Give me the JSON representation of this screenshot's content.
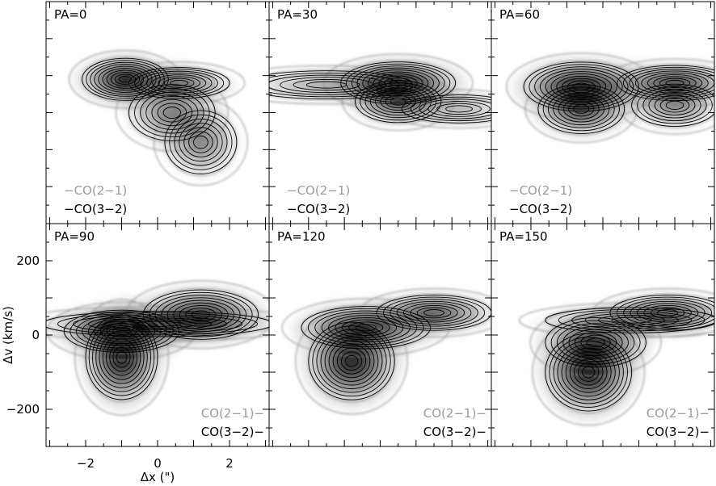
{
  "chart_data": {
    "type": "heatmap",
    "xlabel": "Δx (\")",
    "ylabel": "Δv (km/s)",
    "xlim": [
      -3.1,
      3.1
    ],
    "ylim": [
      -300,
      300
    ],
    "x_ticks": [
      -2,
      0,
      2
    ],
    "y_ticks": [
      -200,
      0,
      200
    ],
    "x_tick_labels": [
      "−2",
      "0",
      "2"
    ],
    "y_tick_labels": [
      "−200",
      "0",
      "200"
    ],
    "grid": false,
    "layout": "2 rows x 3 columns",
    "legend_series": [
      {
        "name": "CO(2−1)",
        "color": "#9a9a9a",
        "style": "gray contours"
      },
      {
        "name": "CO(3−2)",
        "color": "#000000",
        "style": "black contours"
      }
    ],
    "panels": [
      {
        "label": "PA=0",
        "legend": [
          "−CO(2−1)",
          "−CO(3−2)"
        ],
        "legend_position": "bottom-left",
        "components": [
          {
            "x": -0.9,
            "v": 90,
            "sx": 0.6,
            "sv": 30,
            "peak": 1.0
          },
          {
            "x": 0.6,
            "v": 80,
            "sx": 0.7,
            "sv": 22,
            "peak": 0.6
          },
          {
            "x": 0.4,
            "v": 0,
            "sx": 0.6,
            "sv": 40,
            "peak": 0.55
          },
          {
            "x": 1.2,
            "v": -80,
            "sx": 0.5,
            "sv": 45,
            "peak": 0.5
          }
        ]
      },
      {
        "label": "PA=30",
        "legend": [
          "−CO(2−1)",
          "−CO(3−2)"
        ],
        "legend_position": "bottom-left",
        "components": [
          {
            "x": 0.5,
            "v": 80,
            "sx": 0.8,
            "sv": 30,
            "peak": 1.0
          },
          {
            "x": 0.5,
            "v": 30,
            "sx": 0.6,
            "sv": 30,
            "peak": 0.6
          },
          {
            "x": -1.5,
            "v": 75,
            "sx": 1.2,
            "sv": 20,
            "peak": 0.35
          },
          {
            "x": 2.2,
            "v": 10,
            "sx": 0.8,
            "sv": 20,
            "peak": 0.3
          }
        ]
      },
      {
        "label": "PA=60",
        "legend": [
          "−CO(2−1)",
          "−CO(3−2)"
        ],
        "legend_position": "bottom-left",
        "components": [
          {
            "x": -0.6,
            "v": 70,
            "sx": 0.8,
            "sv": 35,
            "peak": 1.0
          },
          {
            "x": -0.6,
            "v": 10,
            "sx": 0.6,
            "sv": 35,
            "peak": 0.7
          },
          {
            "x": 2.0,
            "v": 80,
            "sx": 0.8,
            "sv": 25,
            "peak": 0.8
          },
          {
            "x": 2.0,
            "v": 20,
            "sx": 0.6,
            "sv": 30,
            "peak": 0.5
          }
        ]
      },
      {
        "label": "PA=90",
        "legend": [
          "CO(2−1)−",
          "CO(3−2)−"
        ],
        "legend_position": "bottom-right",
        "components": [
          {
            "x": -1.0,
            "v": -60,
            "sx": 0.5,
            "sv": 60,
            "peak": 1.0
          },
          {
            "x": -1.0,
            "v": 10,
            "sx": 0.8,
            "sv": 30,
            "peak": 0.85
          },
          {
            "x": 1.2,
            "v": 55,
            "sx": 0.8,
            "sv": 35,
            "peak": 0.85
          },
          {
            "x": 0.0,
            "v": 30,
            "sx": 1.6,
            "sv": 18,
            "peak": 0.45
          }
        ]
      },
      {
        "label": "PA=120",
        "legend": [
          "CO(2−1)−",
          "CO(3−2)−"
        ],
        "legend_position": "bottom-right",
        "components": [
          {
            "x": -0.8,
            "v": -70,
            "sx": 0.6,
            "sv": 55,
            "peak": 1.0
          },
          {
            "x": -0.4,
            "v": 20,
            "sx": 0.9,
            "sv": 30,
            "peak": 0.8
          },
          {
            "x": 1.5,
            "v": 60,
            "sx": 0.8,
            "sv": 25,
            "peak": 0.7
          }
        ]
      },
      {
        "label": "PA=150",
        "legend": [
          "CO(2−1)−",
          "CO(3−2)−"
        ],
        "legend_position": "bottom-right",
        "components": [
          {
            "x": -0.4,
            "v": -100,
            "sx": 0.6,
            "sv": 55,
            "peak": 1.0
          },
          {
            "x": -0.2,
            "v": -20,
            "sx": 0.7,
            "sv": 35,
            "peak": 0.7
          },
          {
            "x": 1.8,
            "v": 60,
            "sx": 0.8,
            "sv": 25,
            "peak": 0.65
          },
          {
            "x": 0.8,
            "v": 40,
            "sx": 1.2,
            "sv": 18,
            "peak": 0.4
          }
        ]
      }
    ]
  }
}
